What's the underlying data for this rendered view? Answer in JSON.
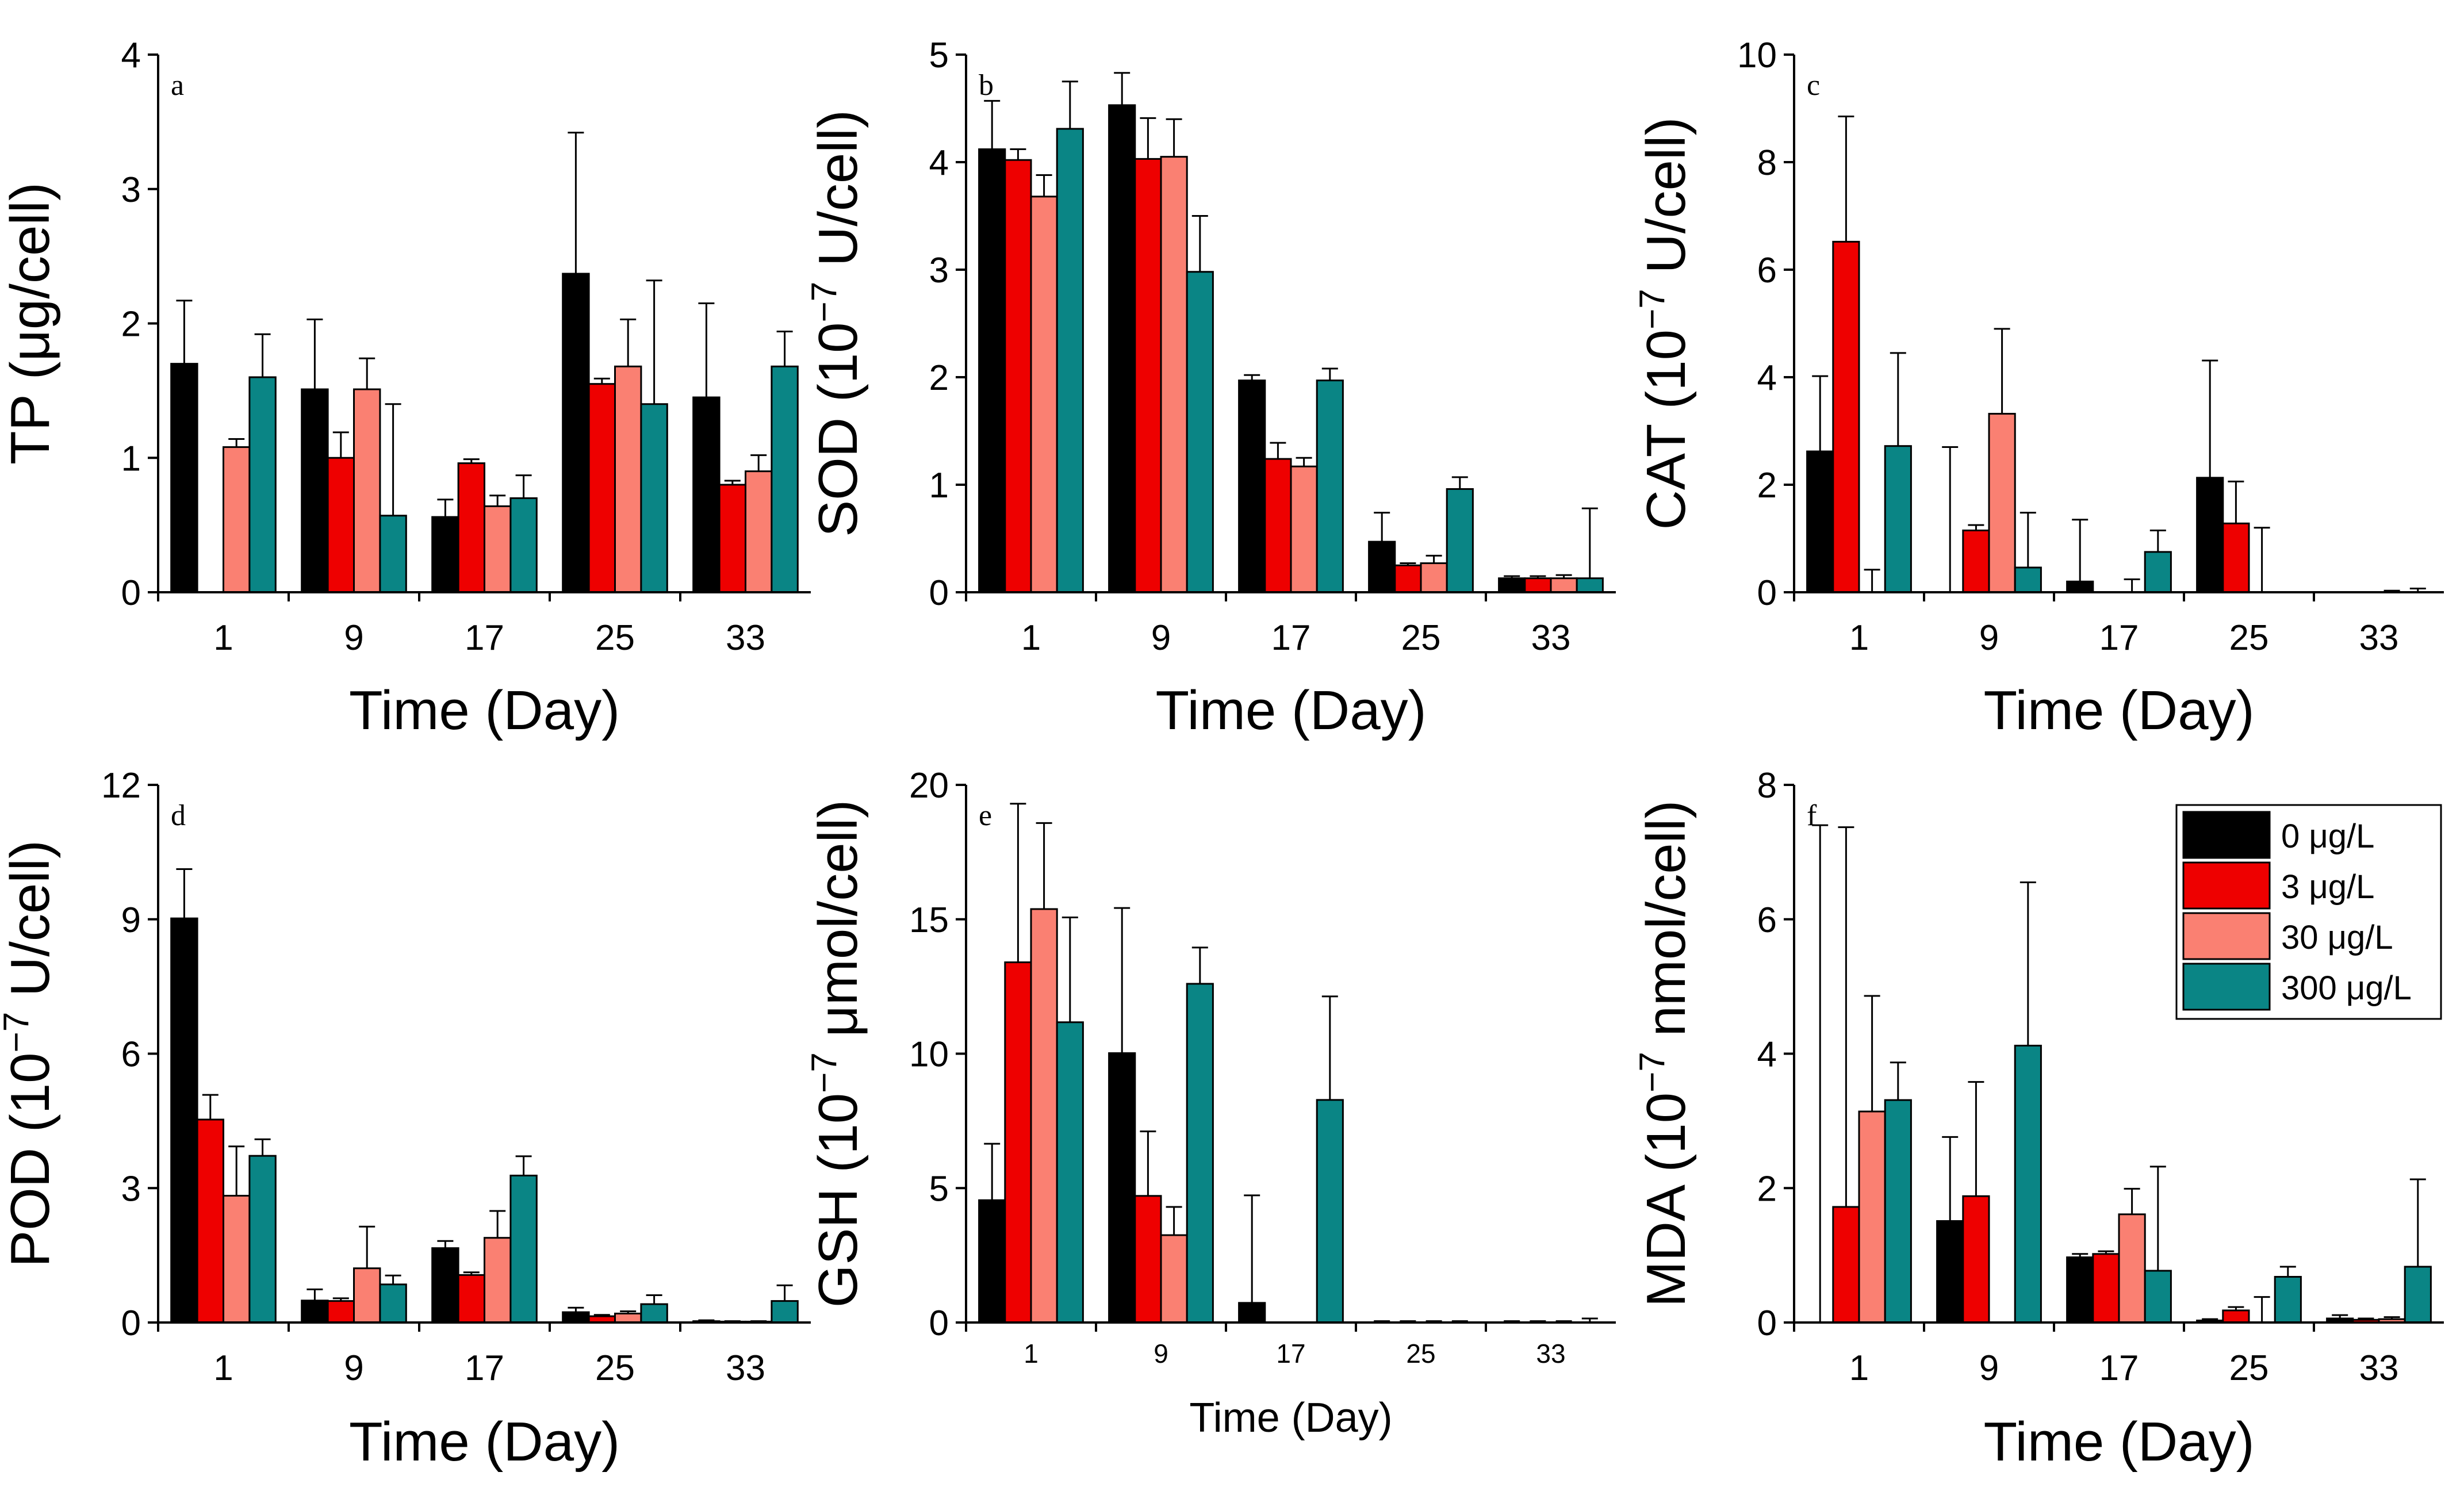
{
  "chart_data": [
    {
      "id": "a",
      "type": "bar",
      "panel_label": "a",
      "ylabel": "TP (μg/cell)",
      "ylabel_parts": [
        "TP (μg/cell)"
      ],
      "xlabel": "Time (Day)",
      "categories": [
        "1",
        "9",
        "17",
        "25",
        "33"
      ],
      "ylim": [
        0,
        4
      ],
      "yticks": [
        "0",
        "1",
        "2",
        "3",
        "4"
      ],
      "series": [
        {
          "name": "0 μg/L",
          "values": [
            1.7,
            1.51,
            0.56,
            2.37,
            1.45
          ],
          "errors": [
            0.47,
            0.52,
            0.13,
            1.05,
            0.7
          ]
        },
        {
          "name": "3 μg/L",
          "values": [
            0.0,
            1.0,
            0.96,
            1.55,
            0.8
          ],
          "errors": [
            0.0,
            0.19,
            0.03,
            0.04,
            0.03
          ]
        },
        {
          "name": "30 μg/L",
          "values": [
            1.08,
            1.51,
            0.64,
            1.68,
            0.9
          ],
          "errors": [
            0.06,
            0.23,
            0.08,
            0.35,
            0.12
          ]
        },
        {
          "name": "300 μg/L",
          "values": [
            1.6,
            0.57,
            0.7,
            1.4,
            1.68
          ],
          "errors": [
            0.32,
            0.83,
            0.17,
            0.92,
            0.26
          ]
        }
      ]
    },
    {
      "id": "b",
      "type": "bar",
      "panel_label": "b",
      "ylabel": "SOD (10⁻⁷ U/cell)",
      "ylabel_parts": [
        "SOD (10",
        "−7",
        " U/cell)"
      ],
      "xlabel": "Time (Day)",
      "categories": [
        "1",
        "9",
        "17",
        "25",
        "33"
      ],
      "ylim": [
        0,
        5
      ],
      "yticks": [
        "0",
        "1",
        "2",
        "3",
        "4",
        "5"
      ],
      "series": [
        {
          "name": "0 μg/L",
          "values": [
            4.12,
            4.53,
            1.97,
            0.47,
            0.13
          ],
          "errors": [
            0.45,
            0.3,
            0.05,
            0.27,
            0.02
          ]
        },
        {
          "name": "3 μg/L",
          "values": [
            4.02,
            4.03,
            1.24,
            0.25,
            0.13
          ],
          "errors": [
            0.1,
            0.38,
            0.15,
            0.02,
            0.02
          ]
        },
        {
          "name": "30 μg/L",
          "values": [
            3.68,
            4.05,
            1.17,
            0.27,
            0.13
          ],
          "errors": [
            0.2,
            0.35,
            0.08,
            0.07,
            0.03
          ]
        },
        {
          "name": "300 μg/L",
          "values": [
            4.31,
            2.98,
            1.97,
            0.96,
            0.13
          ],
          "errors": [
            0.44,
            0.52,
            0.11,
            0.11,
            0.65
          ]
        }
      ]
    },
    {
      "id": "c",
      "type": "bar",
      "panel_label": "c",
      "ylabel": "CAT (10⁻⁷ U/cell)",
      "ylabel_parts": [
        "CAT (10",
        "−7",
        " U/cell)"
      ],
      "xlabel": "Time (Day)",
      "categories": [
        "1",
        "9",
        "17",
        "25",
        "33"
      ],
      "ylim": [
        0,
        10
      ],
      "yticks": [
        "0",
        "2",
        "4",
        "6",
        "8",
        "10"
      ],
      "series": [
        {
          "name": "0 μg/L",
          "values": [
            2.62,
            0.0,
            0.2,
            2.13,
            0.0
          ],
          "errors": [
            1.4,
            2.7,
            1.15,
            2.18,
            0.0
          ]
        },
        {
          "name": "3 μg/L",
          "values": [
            6.52,
            1.15,
            0.0,
            1.28,
            0.0
          ],
          "errors": [
            2.33,
            0.1,
            0.0,
            0.78,
            0.0
          ]
        },
        {
          "name": "30 μg/L",
          "values": [
            0.0,
            3.32,
            0.0,
            0.0,
            0.0
          ],
          "errors": [
            0.42,
            1.58,
            0.24,
            1.2,
            0.03
          ]
        },
        {
          "name": "300 μg/L",
          "values": [
            2.72,
            0.46,
            0.75,
            0.0,
            0.0
          ],
          "errors": [
            1.73,
            1.02,
            0.4,
            0.0,
            0.07
          ]
        }
      ]
    },
    {
      "id": "d",
      "type": "bar",
      "panel_label": "d",
      "ylabel": "POD (10⁻⁷ U/cell)",
      "ylabel_parts": [
        "POD (10",
        "−7",
        " U/cell)"
      ],
      "xlabel": "Time (Day)",
      "categories": [
        "1",
        "9",
        "17",
        "25",
        "33"
      ],
      "ylim": [
        0,
        12
      ],
      "yticks": [
        "0",
        "3",
        "6",
        "9",
        "12"
      ],
      "series": [
        {
          "name": "0 μg/L",
          "values": [
            9.02,
            0.49,
            1.66,
            0.23,
            0.03
          ],
          "errors": [
            1.1,
            0.25,
            0.16,
            0.1,
            0.02
          ]
        },
        {
          "name": "3 μg/L",
          "values": [
            4.53,
            0.48,
            1.06,
            0.14,
            0.02
          ],
          "errors": [
            0.55,
            0.06,
            0.06,
            0.03,
            0.01
          ]
        },
        {
          "name": "30 μg/L",
          "values": [
            2.83,
            1.21,
            1.89,
            0.2,
            0.02
          ],
          "errors": [
            1.1,
            0.93,
            0.6,
            0.05,
            0.01
          ]
        },
        {
          "name": "300 μg/L",
          "values": [
            3.72,
            0.85,
            3.28,
            0.41,
            0.48
          ],
          "errors": [
            0.37,
            0.2,
            0.43,
            0.2,
            0.35
          ]
        }
      ]
    },
    {
      "id": "e",
      "type": "bar",
      "panel_label": "e",
      "ylabel": "GSH (10⁻⁷ μmol/cell)",
      "ylabel_parts": [
        "GSH (10",
        "−7",
        " μmol/cell)"
      ],
      "xlabel": "Time (Day)",
      "categories": [
        "1",
        "9",
        "17",
        "25",
        "33"
      ],
      "ylim": [
        0,
        20
      ],
      "yticks": [
        "0",
        "5",
        "10",
        "15",
        "20"
      ],
      "series": [
        {
          "name": "0 μg/L",
          "values": [
            4.55,
            10.02,
            0.73,
            0.0,
            0.0
          ],
          "errors": [
            2.1,
            5.4,
            4.0,
            0.05,
            0.05
          ]
        },
        {
          "name": "3 μg/L",
          "values": [
            13.4,
            4.71,
            0.0,
            0.0,
            0.0
          ],
          "errors": [
            5.9,
            2.4,
            0.0,
            0.05,
            0.05
          ]
        },
        {
          "name": "30 μg/L",
          "values": [
            15.38,
            3.25,
            0.0,
            0.0,
            0.0
          ],
          "errors": [
            3.2,
            1.05,
            0.0,
            0.05,
            0.05
          ]
        },
        {
          "name": "300 μg/L",
          "values": [
            11.17,
            12.6,
            8.28,
            0.0,
            0.0
          ],
          "errors": [
            3.9,
            1.35,
            3.85,
            0.05,
            0.15
          ]
        }
      ]
    },
    {
      "id": "f",
      "type": "bar",
      "panel_label": "f",
      "ylabel": "MDA (10⁻⁷ nmol/cell)",
      "ylabel_parts": [
        "MDA (10",
        "−7",
        " nmol/cell)"
      ],
      "xlabel": "Time (Day)",
      "categories": [
        "1",
        "9",
        "17",
        "25",
        "33"
      ],
      "ylim": [
        0,
        8
      ],
      "yticks": [
        "0",
        "2",
        "4",
        "6",
        "8"
      ],
      "series": [
        {
          "name": "0 μg/L",
          "values": [
            0.0,
            1.51,
            0.97,
            0.03,
            0.06
          ],
          "errors": [
            7.4,
            1.25,
            0.05,
            0.02,
            0.05
          ]
        },
        {
          "name": "3 μg/L",
          "values": [
            1.72,
            1.88,
            1.02,
            0.18,
            0.04
          ],
          "errors": [
            5.65,
            1.7,
            0.04,
            0.05,
            0.02
          ]
        },
        {
          "name": "30 μg/L",
          "values": [
            3.14,
            0.0,
            1.61,
            0.0,
            0.05
          ],
          "errors": [
            1.72,
            0.0,
            0.38,
            0.38,
            0.03
          ]
        },
        {
          "name": "300 μg/L",
          "values": [
            3.31,
            4.12,
            0.77,
            0.68,
            0.83
          ],
          "errors": [
            0.56,
            2.43,
            1.55,
            0.15,
            1.3
          ]
        }
      ]
    }
  ],
  "legend": {
    "placement": "top-right of panel f",
    "entries": [
      {
        "label": "0 μg/L",
        "color": "#000000"
      },
      {
        "label": "3 μg/L",
        "color": "#ee0000"
      },
      {
        "label": "30 μg/L",
        "color": "#fa8072"
      },
      {
        "label": "300 μg/L",
        "color": "#0a8585"
      }
    ]
  },
  "colors": {
    "edge": "#000000",
    "axis": "#000000"
  }
}
